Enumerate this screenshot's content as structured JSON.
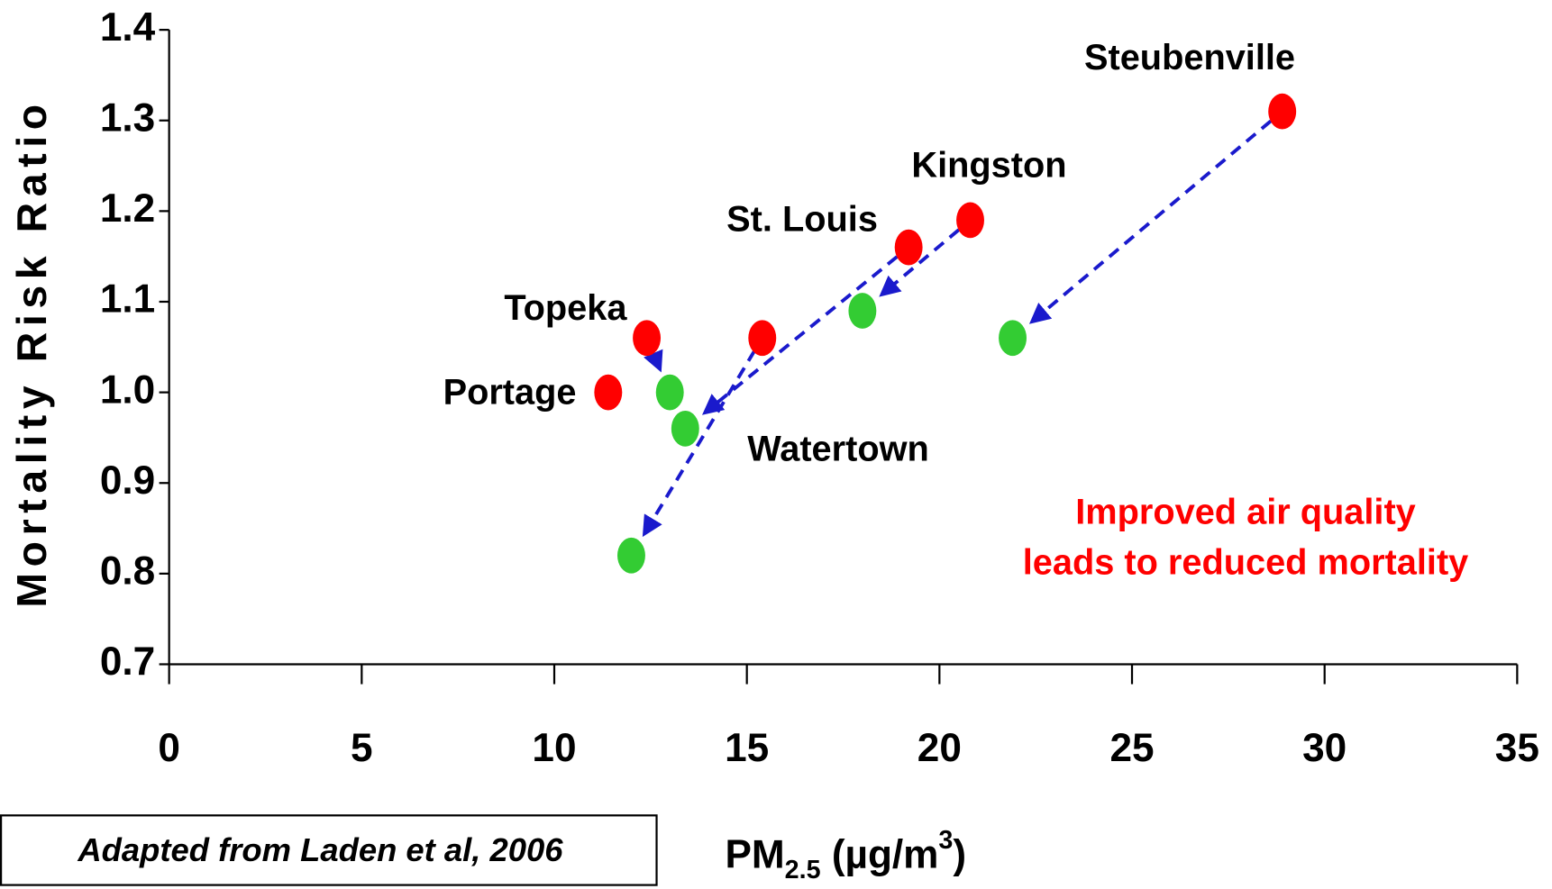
{
  "chart_data": {
    "type": "scatter",
    "y_label": "Mortality Risk Ratio",
    "x_label": [
      "PM",
      "2.5",
      " (µg/m",
      "3",
      ")"
    ],
    "annotation": [
      "Improved air quality",
      "leads to reduced mortality"
    ],
    "source": "Adapted from Laden et al, 2006",
    "xlim": [
      0,
      35
    ],
    "xticks": [
      0,
      5,
      10,
      15,
      20,
      25,
      30,
      35
    ],
    "ylim": [
      0.7,
      1.4
    ],
    "yticks": [
      0.7,
      0.8,
      0.9,
      {
        "value": 1,
        "label": "1.0"
      },
      1.1,
      1.2,
      1.3,
      1.4
    ],
    "series": [
      {
        "color": "#ff0000",
        "labels": [
          "Portage",
          "Topeka",
          "Watertown",
          "St. Louis",
          "Kingston",
          "Steubenville"
        ],
        "x": [
          11.4,
          12.4,
          15.4,
          19.2,
          20.8,
          28.9
        ],
        "values": [
          1.0,
          1.06,
          1.06,
          1.16,
          1.19,
          1.31
        ]
      },
      {
        "color": "#33cc33",
        "x": [
          null,
          13.0,
          12.0,
          13.4,
          18.0,
          21.9
        ],
        "values": [
          null,
          1.0,
          0.82,
          0.96,
          1.09,
          1.06
        ]
      }
    ],
    "arrow_color": "#1a1acc"
  }
}
